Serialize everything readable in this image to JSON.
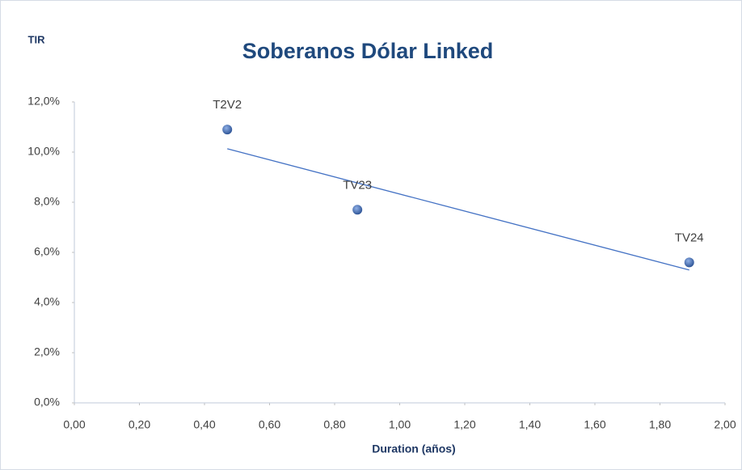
{
  "chart_data": {
    "type": "scatter",
    "title": "Soberanos Dólar Linked",
    "ylabel": "TIR",
    "xlabel": "Duration (años)",
    "series": [
      {
        "name": "Soberanos",
        "color": "#4472c4",
        "x": [
          0.47,
          0.87,
          1.89
        ],
        "values": [
          10.9,
          7.7,
          5.6
        ],
        "point_labels": [
          "T2V2",
          "TV23",
          "TV24"
        ]
      }
    ],
    "trendline": "linear",
    "xlim": [
      0,
      2
    ],
    "xticks": [
      {
        "value": 0,
        "label": "0,00"
      },
      {
        "value": 0.2,
        "label": "0,20"
      },
      {
        "value": 0.4,
        "label": "0,40"
      },
      {
        "value": 0.6,
        "label": "0,60"
      },
      {
        "value": 0.8,
        "label": "0,80"
      },
      {
        "value": 1,
        "label": "1,00"
      },
      {
        "value": 1.2,
        "label": "1,20"
      },
      {
        "value": 1.4,
        "label": "1,40"
      },
      {
        "value": 1.6,
        "label": "1,60"
      },
      {
        "value": 1.8,
        "label": "1,80"
      },
      {
        "value": 2,
        "label": "2,00"
      }
    ],
    "ylim": [
      0,
      12
    ],
    "yticks": [
      {
        "value": 0,
        "label": "0,0%"
      },
      {
        "value": 2,
        "label": "2,0%"
      },
      {
        "value": 4,
        "label": "4,0%"
      },
      {
        "value": 6,
        "label": "6,0%"
      },
      {
        "value": 8,
        "label": "8,0%"
      },
      {
        "value": 10,
        "label": "10,0%"
      },
      {
        "value": 12,
        "label": "12,0%"
      }
    ]
  }
}
